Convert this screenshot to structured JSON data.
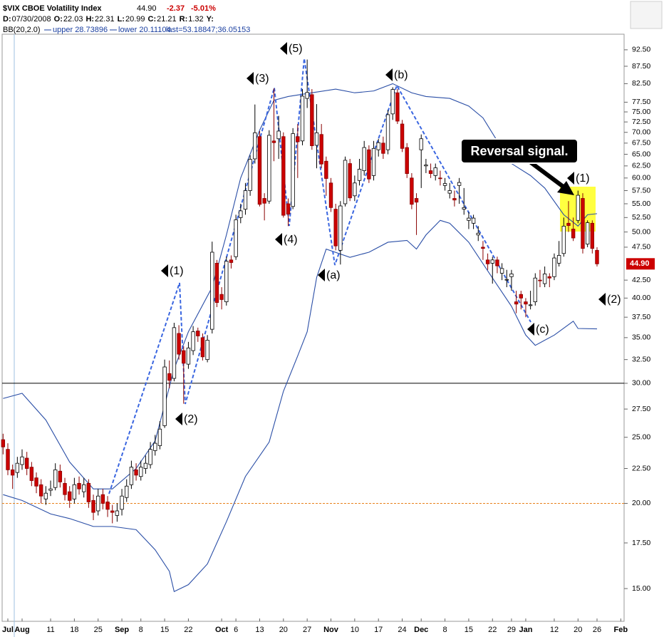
{
  "header": {
    "title": "$VIX CBOE Volatility Index",
    "last": "44.90",
    "change": "-2.37",
    "change_pct": "-5.01%",
    "info": [
      [
        "D:",
        "07/30/2008"
      ],
      [
        "O:",
        "22.03"
      ],
      [
        "H:",
        "22.31"
      ],
      [
        "L:",
        "20.99"
      ],
      [
        "C:",
        "21.21"
      ],
      [
        "R:",
        "1.32"
      ],
      [
        "Y:"
      ]
    ],
    "bb": "BB(20,2.0)",
    "bb_upper": "upper 28.73896",
    "bb_lower": "lower 20.11104",
    "bb_last": "last=53.18847;36.05153"
  },
  "chart_data": {
    "type": "candlestick",
    "log": true,
    "up_color": "#ffffff",
    "down_color": "#cc0000",
    "ylim": [
      13.43,
      97.5
    ],
    "xlim": [
      -0.2,
      130.7
    ],
    "yticks": [
      {
        "value": 15,
        "label": "15.00"
      },
      {
        "value": 17.5,
        "label": "17.50"
      },
      {
        "value": 20,
        "label": "20.00"
      },
      {
        "value": 22.5,
        "label": "22.50"
      },
      {
        "value": 25,
        "label": "25.00"
      },
      {
        "value": 27.5,
        "label": "27.50"
      },
      {
        "value": 30,
        "label": "30.00"
      },
      {
        "value": 32.5,
        "label": "32.50"
      },
      {
        "value": 35,
        "label": "35.00"
      },
      {
        "value": 37.5,
        "label": "37.50"
      },
      {
        "value": 40,
        "label": "40.00"
      },
      {
        "value": 42.5,
        "label": "42.50"
      },
      {
        "value": 47.5,
        "label": "47.50"
      },
      {
        "value": 50,
        "label": "50.00"
      },
      {
        "value": 52.5,
        "label": "52.50"
      },
      {
        "value": 55,
        "label": "55.00"
      },
      {
        "value": 57.5,
        "label": "57.50"
      },
      {
        "value": 60,
        "label": "60.00"
      },
      {
        "value": 62.5,
        "label": "62.50"
      },
      {
        "value": 65,
        "label": "65.00"
      },
      {
        "value": 67.5,
        "label": "67.50"
      },
      {
        "value": 70,
        "label": "70.00"
      },
      {
        "value": 72.5,
        "label": "72.50"
      },
      {
        "value": 75,
        "label": "75.00"
      },
      {
        "value": 77.5,
        "label": "77.50"
      },
      {
        "value": 82.5,
        "label": "82.50"
      },
      {
        "value": 87.5,
        "label": "87.50"
      },
      {
        "value": 92.5,
        "label": "92.50"
      }
    ],
    "xticks": [
      {
        "value": 1,
        "label": "Jul"
      },
      {
        "value": 4,
        "label": "Aug"
      },
      {
        "value": 10,
        "label": "11"
      },
      {
        "value": 15,
        "label": "18"
      },
      {
        "value": 20,
        "label": "25"
      },
      {
        "value": 25,
        "label": "Sep"
      },
      {
        "value": 29,
        "label": "8"
      },
      {
        "value": 34,
        "label": "15"
      },
      {
        "value": 39,
        "label": "22"
      },
      {
        "value": 46,
        "label": "Oct"
      },
      {
        "value": 49,
        "label": "6"
      },
      {
        "value": 54,
        "label": "13"
      },
      {
        "value": 59,
        "label": "20"
      },
      {
        "value": 64,
        "label": "27"
      },
      {
        "value": 69,
        "label": "Nov"
      },
      {
        "value": 74,
        "label": "10"
      },
      {
        "value": 79,
        "label": "17"
      },
      {
        "value": 84,
        "label": "24"
      },
      {
        "value": 88,
        "label": "Dec"
      },
      {
        "value": 93,
        "label": "8"
      },
      {
        "value": 98,
        "label": "15"
      },
      {
        "value": 103,
        "label": "22"
      },
      {
        "value": 107,
        "label": "29"
      },
      {
        "value": 110,
        "label": "Jan"
      },
      {
        "value": 116,
        "label": "12"
      },
      {
        "value": 121,
        "label": "20"
      },
      {
        "value": 125,
        "label": "26"
      },
      {
        "value": 130,
        "label": "Feb"
      }
    ],
    "open": [
      24.8,
      24.0,
      22.4,
      22.2,
      22.8,
      23.3,
      22.6,
      21.8,
      21.3,
      20.3,
      20.9,
      21.1,
      22.3,
      21.4,
      20.8,
      20.3,
      21.4,
      20.8,
      21.4,
      20.2,
      19.5,
      20.6,
      20.1,
      19.5,
      19.2,
      19.6,
      20.4,
      21.3,
      22.4,
      21.9,
      22.5,
      22.8,
      23.9,
      24.3,
      26.0,
      31.0,
      30.5,
      35.5,
      33.5,
      32.0,
      33.5,
      35.8,
      35.0,
      32.5,
      36.0,
      45.0,
      40.5,
      39.5,
      45.5,
      46.0,
      52.5,
      54.0,
      57.5,
      64.0,
      69.0,
      56.0,
      55.5,
      68.0,
      68.5,
      69.0,
      55.0,
      54.5,
      69.0,
      68.0,
      78.5,
      79.5,
      67.0,
      69.5,
      63.5,
      59.0,
      54.0,
      47.0,
      55.0,
      63.0,
      56.5,
      59.5,
      61.5,
      66.0,
      60.5,
      66.0,
      67.5,
      66.0,
      74.5,
      80.0,
      72.0,
      66.5,
      60.0,
      56.0,
      66.0,
      62.5,
      61.5,
      60.5,
      60.0,
      58.5,
      57.0,
      56.0,
      58.5,
      54.0,
      52.0,
      51.5,
      49.5,
      47.5,
      45.5,
      45.0,
      45.5,
      43.5,
      42.5,
      43.0,
      39.5,
      40.5,
      39.5,
      39.0,
      39.5,
      42.5,
      42.0,
      43.0,
      43.0,
      45.0,
      46.5,
      51.5,
      50.5,
      52.0,
      56.0,
      48.0,
      51.5,
      47.0
    ],
    "high": [
      25.3,
      24.5,
      22.8,
      23.4,
      24.0,
      23.8,
      23.0,
      22.2,
      21.7,
      21.2,
      21.6,
      22.9,
      22.8,
      21.8,
      21.2,
      21.8,
      21.9,
      21.8,
      21.7,
      20.6,
      21.0,
      21.0,
      20.5,
      19.9,
      20.0,
      21.0,
      21.7,
      23.1,
      22.9,
      23.1,
      23.5,
      24.6,
      25.2,
      26.4,
      32.5,
      32.4,
      36.8,
      36.5,
      34.0,
      34.5,
      36.4,
      36.2,
      35.5,
      35.3,
      48.4,
      45.5,
      41.5,
      46.0,
      46.2,
      53.0,
      55.0,
      59.0,
      64.8,
      76.9,
      70.3,
      57.0,
      70.5,
      81.2,
      74.0,
      70.0,
      56.0,
      71.0,
      72.0,
      81.0,
      89.5,
      81.0,
      77.0,
      72.0,
      64.5,
      60.0,
      55.0,
      55.5,
      64.5,
      64.0,
      60.5,
      64.0,
      68.0,
      67.0,
      68.0,
      68.5,
      69.0,
      75.5,
      81.5,
      81.0,
      73.0,
      67.5,
      61.0,
      57.0,
      69.5,
      64.0,
      63.0,
      63.0,
      61.5,
      60.0,
      59.0,
      57.5,
      60.0,
      58.0,
      53.5,
      53.0,
      51.0,
      48.5,
      46.5,
      46.0,
      46.0,
      45.0,
      44.0,
      44.0,
      41.0,
      41.0,
      40.0,
      41.0,
      43.5,
      44.0,
      44.5,
      43.5,
      46.5,
      48.5,
      52.5,
      55.5,
      52.5,
      57.5,
      57.0,
      52.0,
      52.0,
      47.5
    ],
    "low": [
      23.6,
      22.0,
      21.0,
      21.8,
      22.4,
      22.0,
      21.2,
      20.7,
      20.0,
      19.9,
      20.5,
      20.9,
      21.1,
      20.2,
      19.7,
      20.0,
      20.6,
      20.4,
      19.7,
      18.9,
      19.2,
      19.6,
      19.1,
      18.7,
      18.8,
      19.2,
      20.1,
      21.0,
      21.6,
      21.6,
      22.1,
      22.5,
      23.5,
      24.0,
      25.8,
      29.5,
      30.2,
      32.5,
      28.0,
      31.5,
      33.0,
      34.5,
      32.4,
      32.2,
      35.5,
      38.8,
      38.5,
      39.0,
      44.2,
      45.5,
      51.5,
      53.0,
      56.5,
      63.0,
      54.5,
      52.0,
      55.0,
      63.5,
      64.0,
      52.5,
      51.0,
      54.0,
      60.0,
      67.0,
      76.0,
      66.0,
      62.0,
      62.0,
      56.5,
      53.5,
      47.0,
      44.8,
      54.5,
      55.5,
      55.5,
      58.5,
      60.5,
      59.0,
      59.5,
      64.5,
      64.0,
      65.0,
      73.0,
      72.0,
      65.5,
      60.0,
      54.0,
      49.5,
      58.0,
      61.0,
      60.0,
      59.5,
      58.5,
      57.5,
      56.0,
      54.5,
      55.0,
      53.0,
      50.5,
      50.5,
      48.5,
      45.5,
      44.0,
      42.0,
      43.5,
      42.5,
      41.5,
      41.0,
      38.0,
      38.5,
      37.5,
      38.5,
      39.0,
      41.5,
      41.5,
      41.5,
      42.5,
      44.5,
      46.0,
      50.0,
      48.5,
      51.5,
      46.5,
      47.5,
      46.5,
      44.5
    ],
    "close": [
      24.2,
      22.4,
      22.0,
      22.9,
      23.4,
      22.5,
      21.6,
      21.2,
      20.5,
      20.7,
      21.0,
      22.4,
      21.5,
      20.6,
      20.2,
      21.3,
      21.0,
      21.3,
      20.1,
      19.4,
      20.5,
      20.0,
      19.6,
      19.4,
      19.5,
      20.5,
      21.2,
      22.6,
      22.0,
      22.6,
      22.9,
      24.0,
      24.5,
      25.7,
      31.7,
      30.3,
      36.2,
      33.1,
      32.1,
      33.8,
      35.7,
      35.2,
      32.8,
      34.7,
      46.7,
      39.4,
      39.8,
      45.3,
      45.1,
      52.1,
      53.7,
      57.5,
      63.9,
      69.9,
      54.9,
      55.1,
      69.3,
      67.6,
      70.3,
      52.9,
      53.1,
      69.7,
      67.8,
      79.1,
      80.1,
      66.9,
      69.9,
      62.9,
      59.9,
      54.3,
      47.7,
      54.6,
      63.7,
      56.1,
      59.0,
      61.8,
      66.5,
      59.8,
      66.3,
      67.6,
      65.2,
      74.3,
      80.9,
      72.7,
      66.3,
      60.9,
      54.9,
      55.3,
      68.5,
      62.7,
      60.9,
      62.1,
      59.9,
      58.9,
      57.5,
      55.7,
      59.1,
      54.3,
      52.4,
      52.4,
      49.8,
      47.3,
      44.9,
      45.5,
      44.6,
      44.2,
      42.6,
      43.4,
      39.2,
      40.0,
      39.2,
      39.1,
      42.8,
      42.4,
      43.4,
      42.8,
      45.8,
      46.2,
      51.0,
      51.1,
      49.0,
      56.6,
      47.3,
      51.6,
      47.3,
      44.9
    ],
    "bands": [
      {
        "color": "#2a4ea6",
        "x": [
          0,
          4,
          9,
          14,
          19,
          23,
          28,
          32,
          36,
          39,
          44,
          47,
          50,
          54,
          57,
          60,
          65,
          70,
          74,
          78,
          82,
          86,
          89,
          94,
          98,
          101,
          104,
          107,
          111,
          114,
          118,
          121,
          123,
          125
        ],
        "values": [
          28.5,
          29,
          26.5,
          23,
          21,
          21,
          22.5,
          24.7,
          31.5,
          35.7,
          41.5,
          49.5,
          60,
          70.5,
          78,
          79,
          80,
          81,
          80,
          80.5,
          82.5,
          80,
          79,
          78.5,
          76.5,
          73.5,
          68,
          63,
          60.5,
          58,
          53,
          51,
          53,
          53.19
        ]
      },
      {
        "color": "#2a4ea6",
        "x": [
          0,
          4,
          10,
          14,
          19,
          23,
          28,
          32,
          35,
          36,
          39,
          43,
          47,
          51,
          56,
          59,
          62,
          64,
          66,
          68,
          73,
          77,
          81,
          85,
          87,
          89,
          92,
          94,
          98,
          103,
          107,
          110,
          112,
          116,
          120,
          121,
          125
        ],
        "values": [
          20.6,
          20.2,
          19.3,
          19,
          18.5,
          18.5,
          18.3,
          17.1,
          15.9,
          14.85,
          15.2,
          16.3,
          18.8,
          21.9,
          24.6,
          29.2,
          32.9,
          35.7,
          42.9,
          47.2,
          45.9,
          46.7,
          48.3,
          48.6,
          47.2,
          49.5,
          52,
          51.5,
          48.3,
          42.8,
          38.9,
          35.3,
          34.1,
          35.3,
          37,
          36.1,
          36.05
        ]
      }
    ],
    "hlines": [
      {
        "value": 30,
        "color": "#000000",
        "dashed": false
      },
      {
        "value": 20,
        "color": "#e8801a",
        "dashed": true
      }
    ],
    "last_price": {
      "value": 44.9,
      "label": "44.90",
      "color": "#cc0000"
    },
    "wave_labels": [
      "(1)",
      "(2)",
      "(3)",
      "(4)",
      "(5)",
      "(a)",
      "(b)",
      "(c)",
      "(1)",
      "(2)"
    ],
    "callout": "Reversal signal."
  }
}
